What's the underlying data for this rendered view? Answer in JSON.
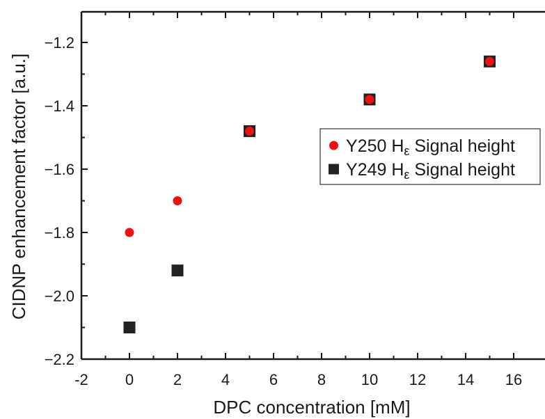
{
  "chart_data": {
    "type": "scatter",
    "xlabel": "DPC concentration [mM]",
    "ylabel": "CIDNP enhancement factor [a.u.]",
    "xlim": [
      -2,
      16.5
    ],
    "ylim": [
      -2.2,
      -1.1
    ],
    "xticks": [
      -2,
      0,
      2,
      4,
      6,
      8,
      10,
      12,
      14,
      16
    ],
    "xtick_labels": [
      "-2",
      "0",
      "2",
      "4",
      "6",
      "8",
      "10",
      "12",
      "14",
      "16"
    ],
    "yticks": [
      -2.2,
      -2.0,
      -1.8,
      -1.6,
      -1.4,
      -1.2
    ],
    "ytick_labels": [
      "−2.2",
      "−2.0",
      "−1.8",
      "−1.6",
      "−1.4",
      "−1.2"
    ],
    "grid": false,
    "legend_position": "middle-right",
    "series": [
      {
        "name": "Y249 Hε Signal height",
        "legend_main": "Y249 H",
        "legend_sub": "ε",
        "legend_tail": " Signal height",
        "marker": "square",
        "color": "#222222",
        "x": [
          0,
          2,
          5,
          10,
          15
        ],
        "y": [
          -2.1,
          -1.92,
          -1.48,
          -1.38,
          -1.26
        ]
      },
      {
        "name": "Y250 Hε Signal height",
        "legend_main": "Y250 H",
        "legend_sub": "ε",
        "legend_tail": " Signal height",
        "marker": "circle",
        "color": "#ee1111",
        "x": [
          0,
          2,
          5,
          10,
          15
        ],
        "y": [
          -1.8,
          -1.7,
          -1.48,
          -1.38,
          -1.26
        ]
      }
    ],
    "legend_order": [
      1,
      0
    ]
  }
}
